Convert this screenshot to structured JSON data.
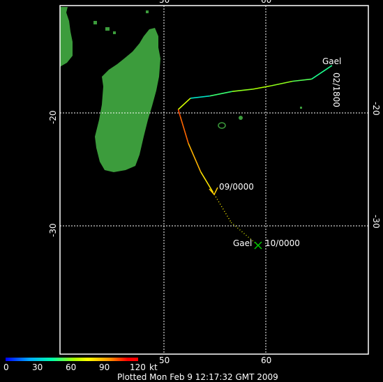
{
  "storm": {
    "name": "Gael",
    "start_label": "02/1800",
    "mid_label": "09/0000",
    "end_label": "10/0000",
    "end_name": "Gael"
  },
  "axes": {
    "lon_ticks": [
      "50",
      "60"
    ],
    "lat_ticks": [
      "-20",
      "-30"
    ]
  },
  "colorbar": {
    "ticks": [
      "0",
      "30",
      "60",
      "90",
      "120"
    ],
    "unit": "kt"
  },
  "footer": {
    "plotted_text": "Plotted Mon Feb  9 12:17:32 GMT 2009"
  },
  "colors": {
    "land": "#3c9c3c",
    "grid": "#ffffff",
    "background": "#000000"
  },
  "track_data": [
    {
      "lon": 66.5,
      "lat": -15.8,
      "kt": 45
    },
    {
      "lon": 64.5,
      "lat": -17.0,
      "kt": 50
    },
    {
      "lon": 62.6,
      "lat": -17.2,
      "kt": 55
    },
    {
      "lon": 60.5,
      "lat": -17.6,
      "kt": 60
    },
    {
      "lon": 58.7,
      "lat": -17.9,
      "kt": 60
    },
    {
      "lon": 56.7,
      "lat": -18.1,
      "kt": 55
    },
    {
      "lon": 54.5,
      "lat": -18.5,
      "kt": 45
    },
    {
      "lon": 52.6,
      "lat": -18.7,
      "kt": 35
    },
    {
      "lon": 51.4,
      "lat": -19.7,
      "kt": 100
    },
    {
      "lon": 51.6,
      "lat": -20.3,
      "kt": 105
    },
    {
      "lon": 52.4,
      "lat": -22.7,
      "kt": 95
    },
    {
      "lon": 53.6,
      "lat": -25.2,
      "kt": 85
    },
    {
      "lon": 54.8,
      "lat": -27.0,
      "kt": 75
    }
  ],
  "forecast_data": [
    {
      "lon": 54.8,
      "lat": -27.0
    },
    {
      "lon": 56.6,
      "lat": -29.7
    },
    {
      "lon": 59.2,
      "lat": -31.7
    }
  ]
}
